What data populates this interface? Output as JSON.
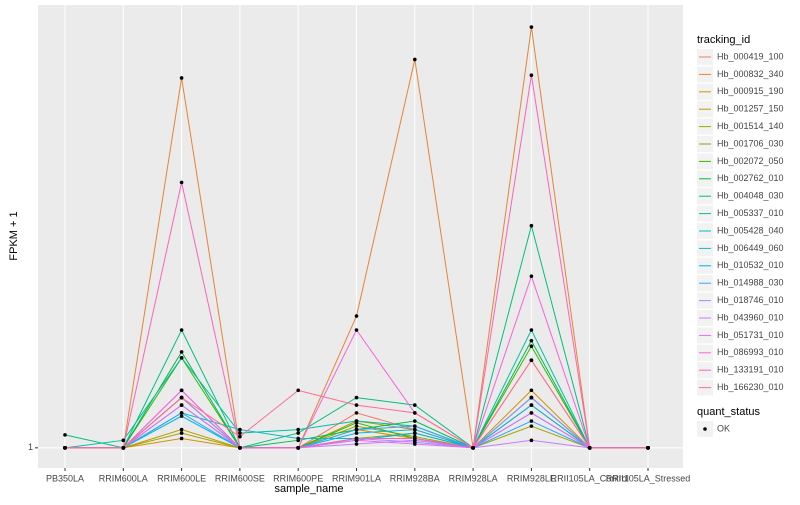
{
  "chart_data": {
    "type": "line",
    "x_label": "sample_name",
    "y_label": "FPKM + 1",
    "log_y": true,
    "grid": true,
    "ylim": [
      0.9,
      10.1
    ],
    "yticks": [
      1
    ],
    "categories": [
      "PB350LA",
      "RRIM600LA",
      "RRIM600LE",
      "RRIM600SE",
      "RRIM600PE",
      "RRIM901LA",
      "RRIM928BA",
      "RRIM928LA",
      "RRIM928LE",
      "RRII105LA_Control",
      "RRII105LA_Stressed"
    ],
    "legend_title": "tracking_id",
    "series": [
      {
        "name": "Hb_000419_100",
        "color": "#F8766D",
        "values": [
          1,
          1,
          1.3,
          1,
          1,
          1.2,
          1.1,
          1,
          1.58,
          1,
          1
        ]
      },
      {
        "name": "Hb_000832_340",
        "color": "#EA8331",
        "values": [
          1,
          1,
          6.9,
          1,
          1,
          1.99,
          7.6,
          1,
          9.0,
          1,
          1
        ]
      },
      {
        "name": "Hb_000915_190",
        "color": "#D89000",
        "values": [
          1,
          1,
          1.05,
          1,
          1,
          1.1,
          1.05,
          1,
          1.35,
          1,
          1
        ]
      },
      {
        "name": "Hb_001257_150",
        "color": "#C09B00",
        "values": [
          1,
          1,
          1.1,
          1,
          1,
          1.15,
          1.1,
          1,
          1.25,
          1,
          1
        ]
      },
      {
        "name": "Hb_001514_140",
        "color": "#A3A500",
        "values": [
          1,
          1,
          1.08,
          1,
          1,
          1.12,
          1.06,
          1,
          1.12,
          1,
          1
        ]
      },
      {
        "name": "Hb_001706_030",
        "color": "#7CAE00",
        "values": [
          1,
          1,
          1.3,
          1,
          1,
          1.05,
          1.08,
          1,
          1.3,
          1,
          1
        ]
      },
      {
        "name": "Hb_002072_050",
        "color": "#39B600",
        "values": [
          1,
          1,
          1.6,
          1,
          1,
          1.14,
          1.05,
          1,
          1.7,
          1,
          1
        ]
      },
      {
        "name": "Hb_002762_010",
        "color": "#00BB4E",
        "values": [
          1,
          1,
          1.65,
          1,
          1.04,
          1.1,
          1.15,
          1,
          1.75,
          1,
          1
        ]
      },
      {
        "name": "Hb_004048_030",
        "color": "#00BF7D",
        "values": [
          1.07,
          1,
          1.85,
          1,
          1.08,
          1.3,
          1.25,
          1,
          3.19,
          1,
          1
        ]
      },
      {
        "name": "Hb_005337_010",
        "color": "#00C1A3",
        "values": [
          1,
          1.04,
          1.6,
          1.08,
          1.1,
          1.15,
          1.12,
          1,
          1.85,
          1,
          1
        ]
      },
      {
        "name": "Hb_005428_040",
        "color": "#00BFC4",
        "values": [
          1,
          1,
          1.2,
          1.1,
          1.05,
          1.05,
          1.05,
          1,
          1.3,
          1,
          1
        ]
      },
      {
        "name": "Hb_006449_060",
        "color": "#00BAE0",
        "values": [
          1,
          1,
          1.18,
          1,
          1,
          1.08,
          1.1,
          1,
          1.2,
          1,
          1
        ]
      },
      {
        "name": "Hb_010532_010",
        "color": "#00B0F6",
        "values": [
          1,
          1,
          1.25,
          1,
          1,
          1.04,
          1.08,
          1,
          1.25,
          1,
          1
        ]
      },
      {
        "name": "Hb_014988_030",
        "color": "#35A2FF",
        "values": [
          1,
          1,
          1.2,
          1,
          1,
          1.1,
          1.12,
          1,
          1.15,
          1,
          1
        ]
      },
      {
        "name": "Hb_018746_010",
        "color": "#9590FF",
        "values": [
          1,
          1,
          1.3,
          1,
          1,
          1.05,
          1.03,
          1,
          1.3,
          1,
          1
        ]
      },
      {
        "name": "Hb_043960_010",
        "color": "#C77CFF",
        "values": [
          1,
          1,
          1.35,
          1,
          1,
          1.02,
          1.04,
          1,
          1.04,
          1,
          1
        ]
      },
      {
        "name": "Hb_051731_010",
        "color": "#E76BF3",
        "values": [
          1,
          1,
          1.25,
          1,
          1,
          1.04,
          1.02,
          1,
          1.2,
          1,
          1
        ]
      },
      {
        "name": "Hb_086993_010",
        "color": "#FA62DB",
        "values": [
          1,
          1,
          1.35,
          1,
          1,
          1.85,
          1.2,
          1,
          2.45,
          1,
          1
        ]
      },
      {
        "name": "Hb_133191_010",
        "color": "#FF62BC",
        "values": [
          1,
          1,
          4.0,
          1,
          1,
          1.05,
          1.05,
          1,
          7.0,
          1,
          1
        ]
      },
      {
        "name": "Hb_166230_010",
        "color": "#FF6C91",
        "values": [
          1,
          1,
          1.3,
          1.06,
          1.35,
          1.25,
          1.2,
          1,
          1.58,
          1,
          1
        ]
      }
    ],
    "point_legend_title": "quant_status",
    "point_legend_items": [
      "OK"
    ]
  }
}
